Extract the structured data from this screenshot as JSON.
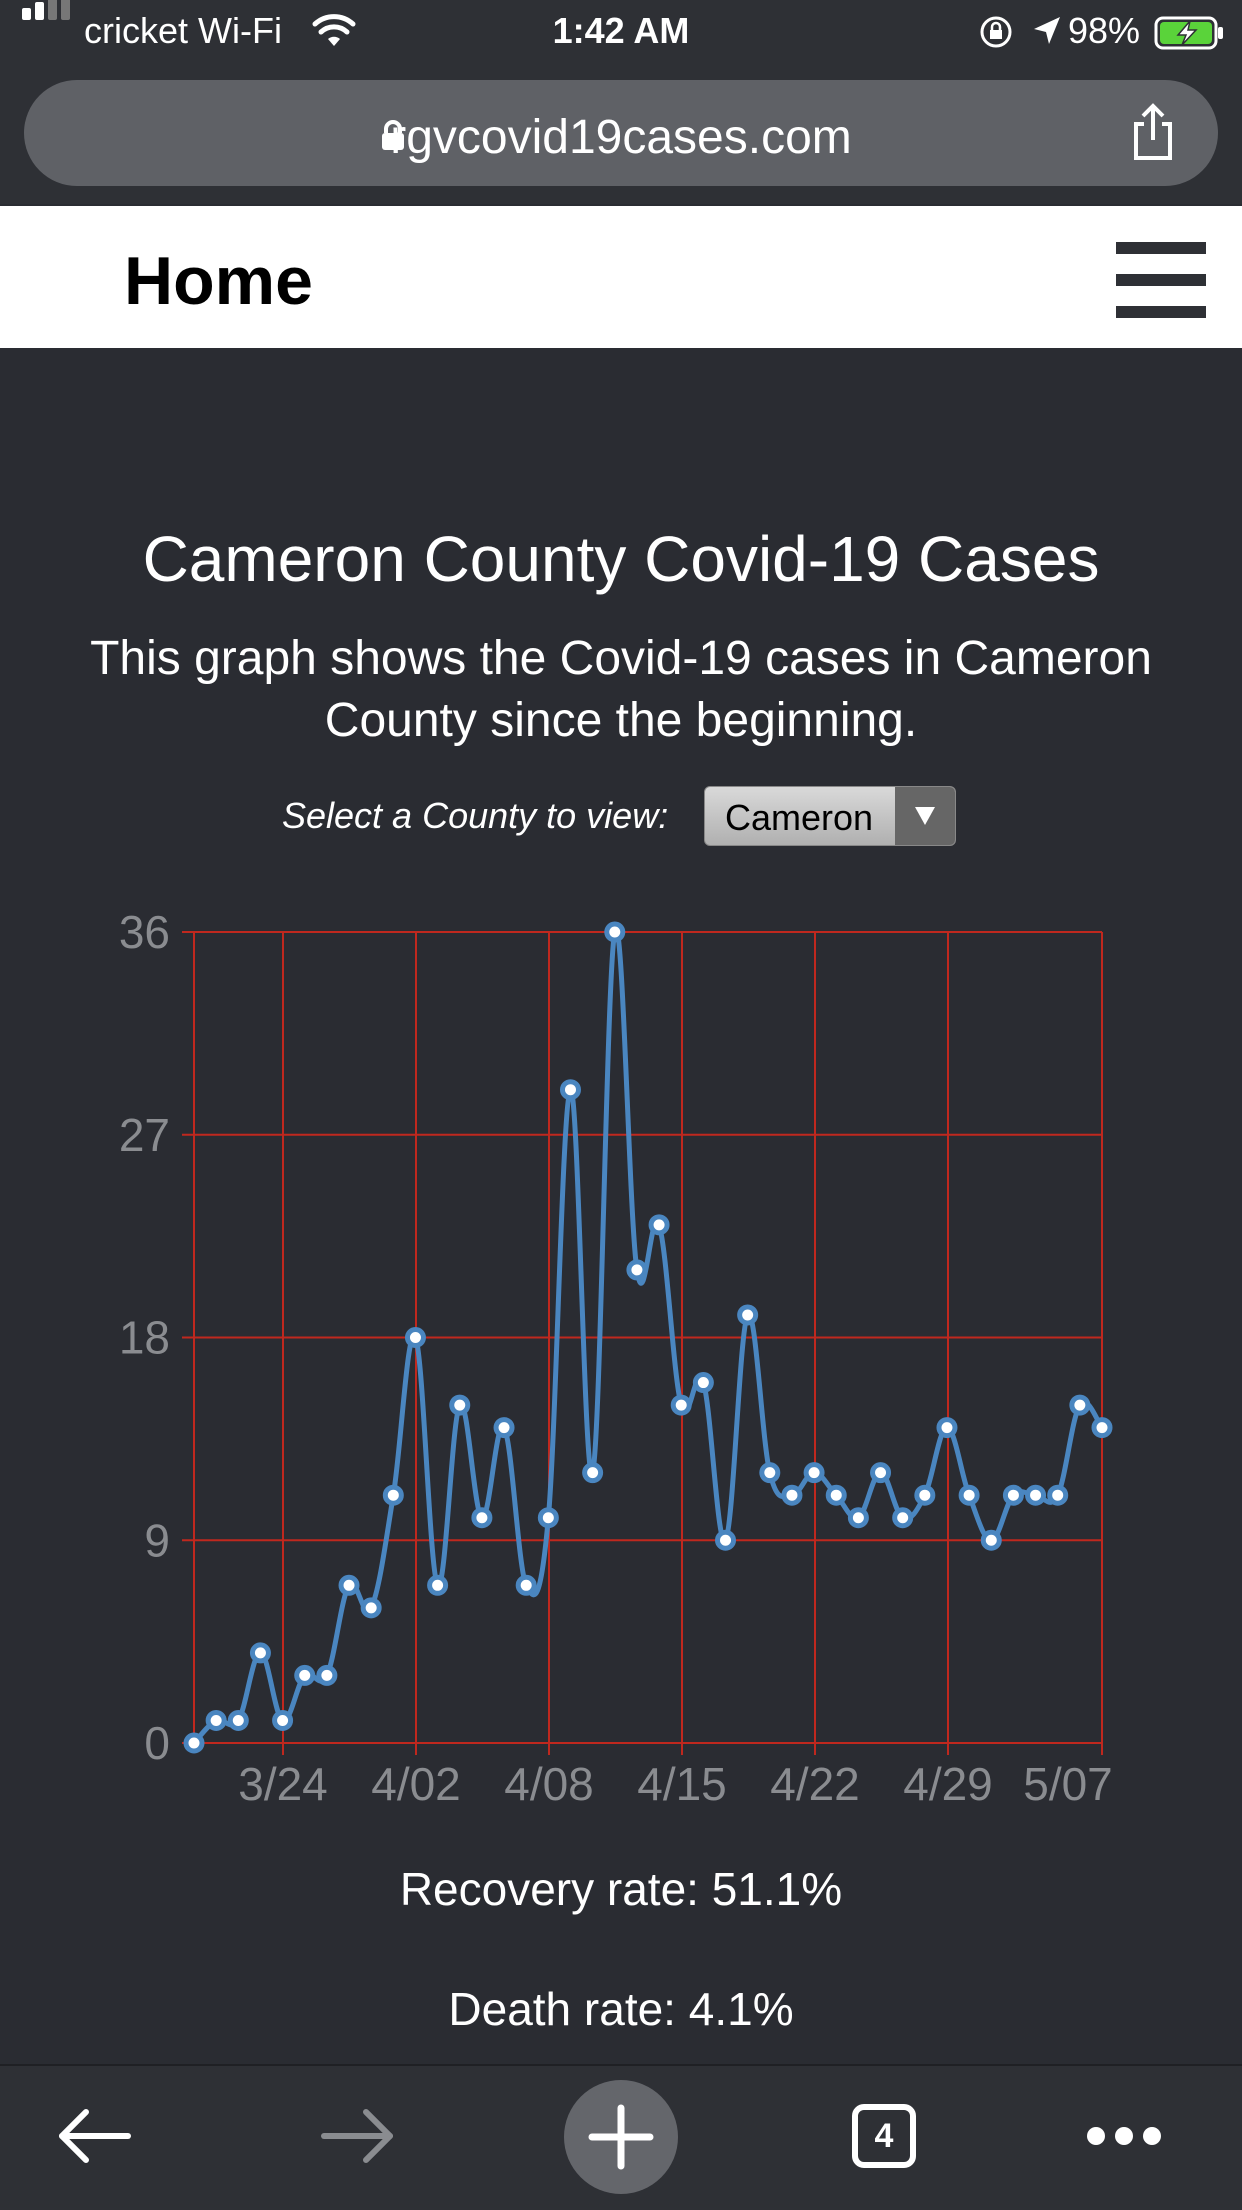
{
  "status_bar": {
    "carrier": "cricket Wi-Fi",
    "time": "1:42 AM",
    "battery_percent": "98%"
  },
  "browser": {
    "url": "rgvcovid19cases.com"
  },
  "header": {
    "title": "Home"
  },
  "content": {
    "heading": "Cameron County Covid-19 Cases",
    "description_line1": "This graph shows the Covid-19 cases in Cameron",
    "description_line2": "County since the beginning.",
    "select_label": "Select a County to view:",
    "select_value": "Cameron",
    "recovery_rate": "Recovery rate: 51.1%",
    "death_rate": "Death rate: 4.1%"
  },
  "toolbar": {
    "tab_count": "4"
  },
  "colors": {
    "background": "#2a2c32",
    "grid": "#c0281e",
    "line": "#4a86c0",
    "tick_label": "#8a8c90"
  },
  "chart_data": {
    "type": "line",
    "title": "",
    "xlabel": "",
    "ylabel": "",
    "ylim": [
      0,
      36
    ],
    "yticks": [
      0,
      9,
      18,
      27,
      36
    ],
    "xtick_labels": [
      "3/24",
      "4/02",
      "4/08",
      "4/15",
      "4/22",
      "4/29",
      "5/07"
    ],
    "grid": true,
    "series": [
      {
        "values": [
          0,
          1,
          1,
          4,
          1,
          3,
          3,
          7,
          6,
          11,
          18,
          7,
          15,
          10,
          14,
          7,
          10,
          29,
          12,
          36,
          21,
          23,
          15,
          16,
          9,
          19,
          12,
          11,
          12,
          11,
          10,
          12,
          10,
          11,
          14,
          11,
          9,
          11,
          11,
          11,
          15,
          14
        ]
      }
    ]
  }
}
